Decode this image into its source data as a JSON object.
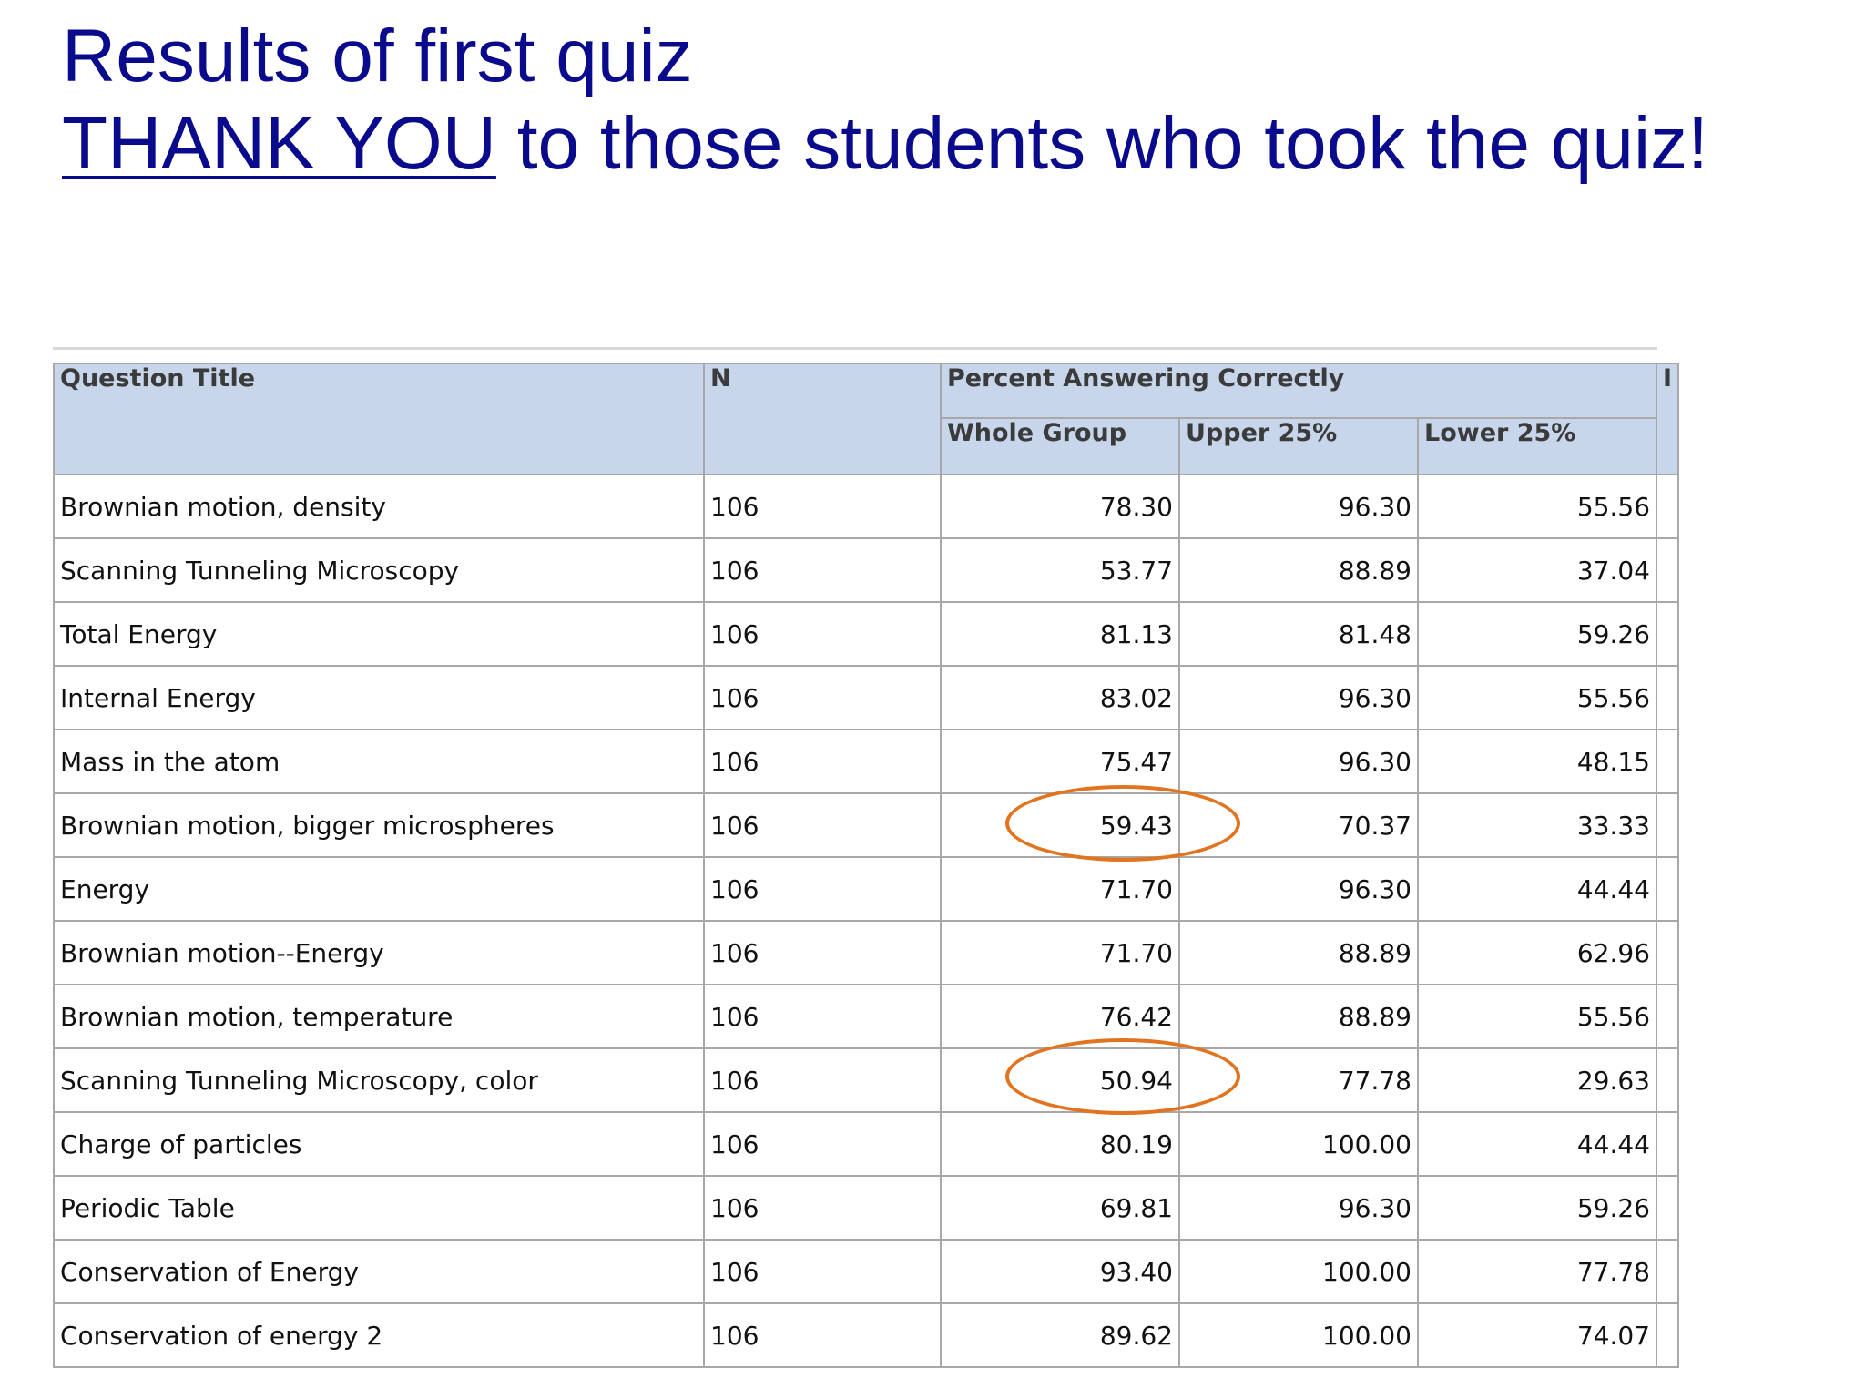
{
  "slide": {
    "title_line1": "Results of first quiz",
    "title_line2_emph": "THANK YOU",
    "title_line2_rest": " to those students who took the quiz!"
  },
  "colors": {
    "title": "#0a0a8c",
    "header_bg": "#c8d6ec",
    "highlight_ring": "#e2731f"
  },
  "table": {
    "headers": {
      "question_title": "Question Title",
      "n": "N",
      "percent_group": "Percent Answering Correctly",
      "whole_group": "Whole Group",
      "upper_25": "Upper 25%",
      "lower_25": "Lower 25%",
      "cut_col": "I"
    },
    "rows": [
      {
        "title": "Brownian motion, density",
        "n": "106",
        "whole": "78.30",
        "upper": "96.30",
        "lower": "55.56"
      },
      {
        "title": "Scanning Tunneling Microscopy",
        "n": "106",
        "whole": "53.77",
        "upper": "88.89",
        "lower": "37.04"
      },
      {
        "title": "Total Energy",
        "n": "106",
        "whole": "81.13",
        "upper": "81.48",
        "lower": "59.26"
      },
      {
        "title": "Internal Energy",
        "n": "106",
        "whole": "83.02",
        "upper": "96.30",
        "lower": "55.56"
      },
      {
        "title": "Mass in the atom",
        "n": "106",
        "whole": "75.47",
        "upper": "96.30",
        "lower": "48.15"
      },
      {
        "title": "Brownian motion, bigger microspheres",
        "n": "106",
        "whole": "59.43",
        "upper": "70.37",
        "lower": "33.33"
      },
      {
        "title": "Energy",
        "n": "106",
        "whole": "71.70",
        "upper": "96.30",
        "lower": "44.44"
      },
      {
        "title": "Brownian motion--Energy",
        "n": "106",
        "whole": "71.70",
        "upper": "88.89",
        "lower": "62.96"
      },
      {
        "title": "Brownian motion, temperature",
        "n": "106",
        "whole": "76.42",
        "upper": "88.89",
        "lower": "55.56"
      },
      {
        "title": "Scanning Tunneling Microscopy, color",
        "n": "106",
        "whole": "50.94",
        "upper": "77.78",
        "lower": "29.63"
      },
      {
        "title": "Charge of particles",
        "n": "106",
        "whole": "80.19",
        "upper": "100.00",
        "lower": "44.44"
      },
      {
        "title": "Periodic Table",
        "n": "106",
        "whole": "69.81",
        "upper": "96.30",
        "lower": "59.26"
      },
      {
        "title": "Conservation of Energy",
        "n": "106",
        "whole": "93.40",
        "upper": "100.00",
        "lower": "77.78"
      },
      {
        "title": "Conservation of energy 2",
        "n": "106",
        "whole": "89.62",
        "upper": "100.00",
        "lower": "74.07"
      }
    ]
  }
}
